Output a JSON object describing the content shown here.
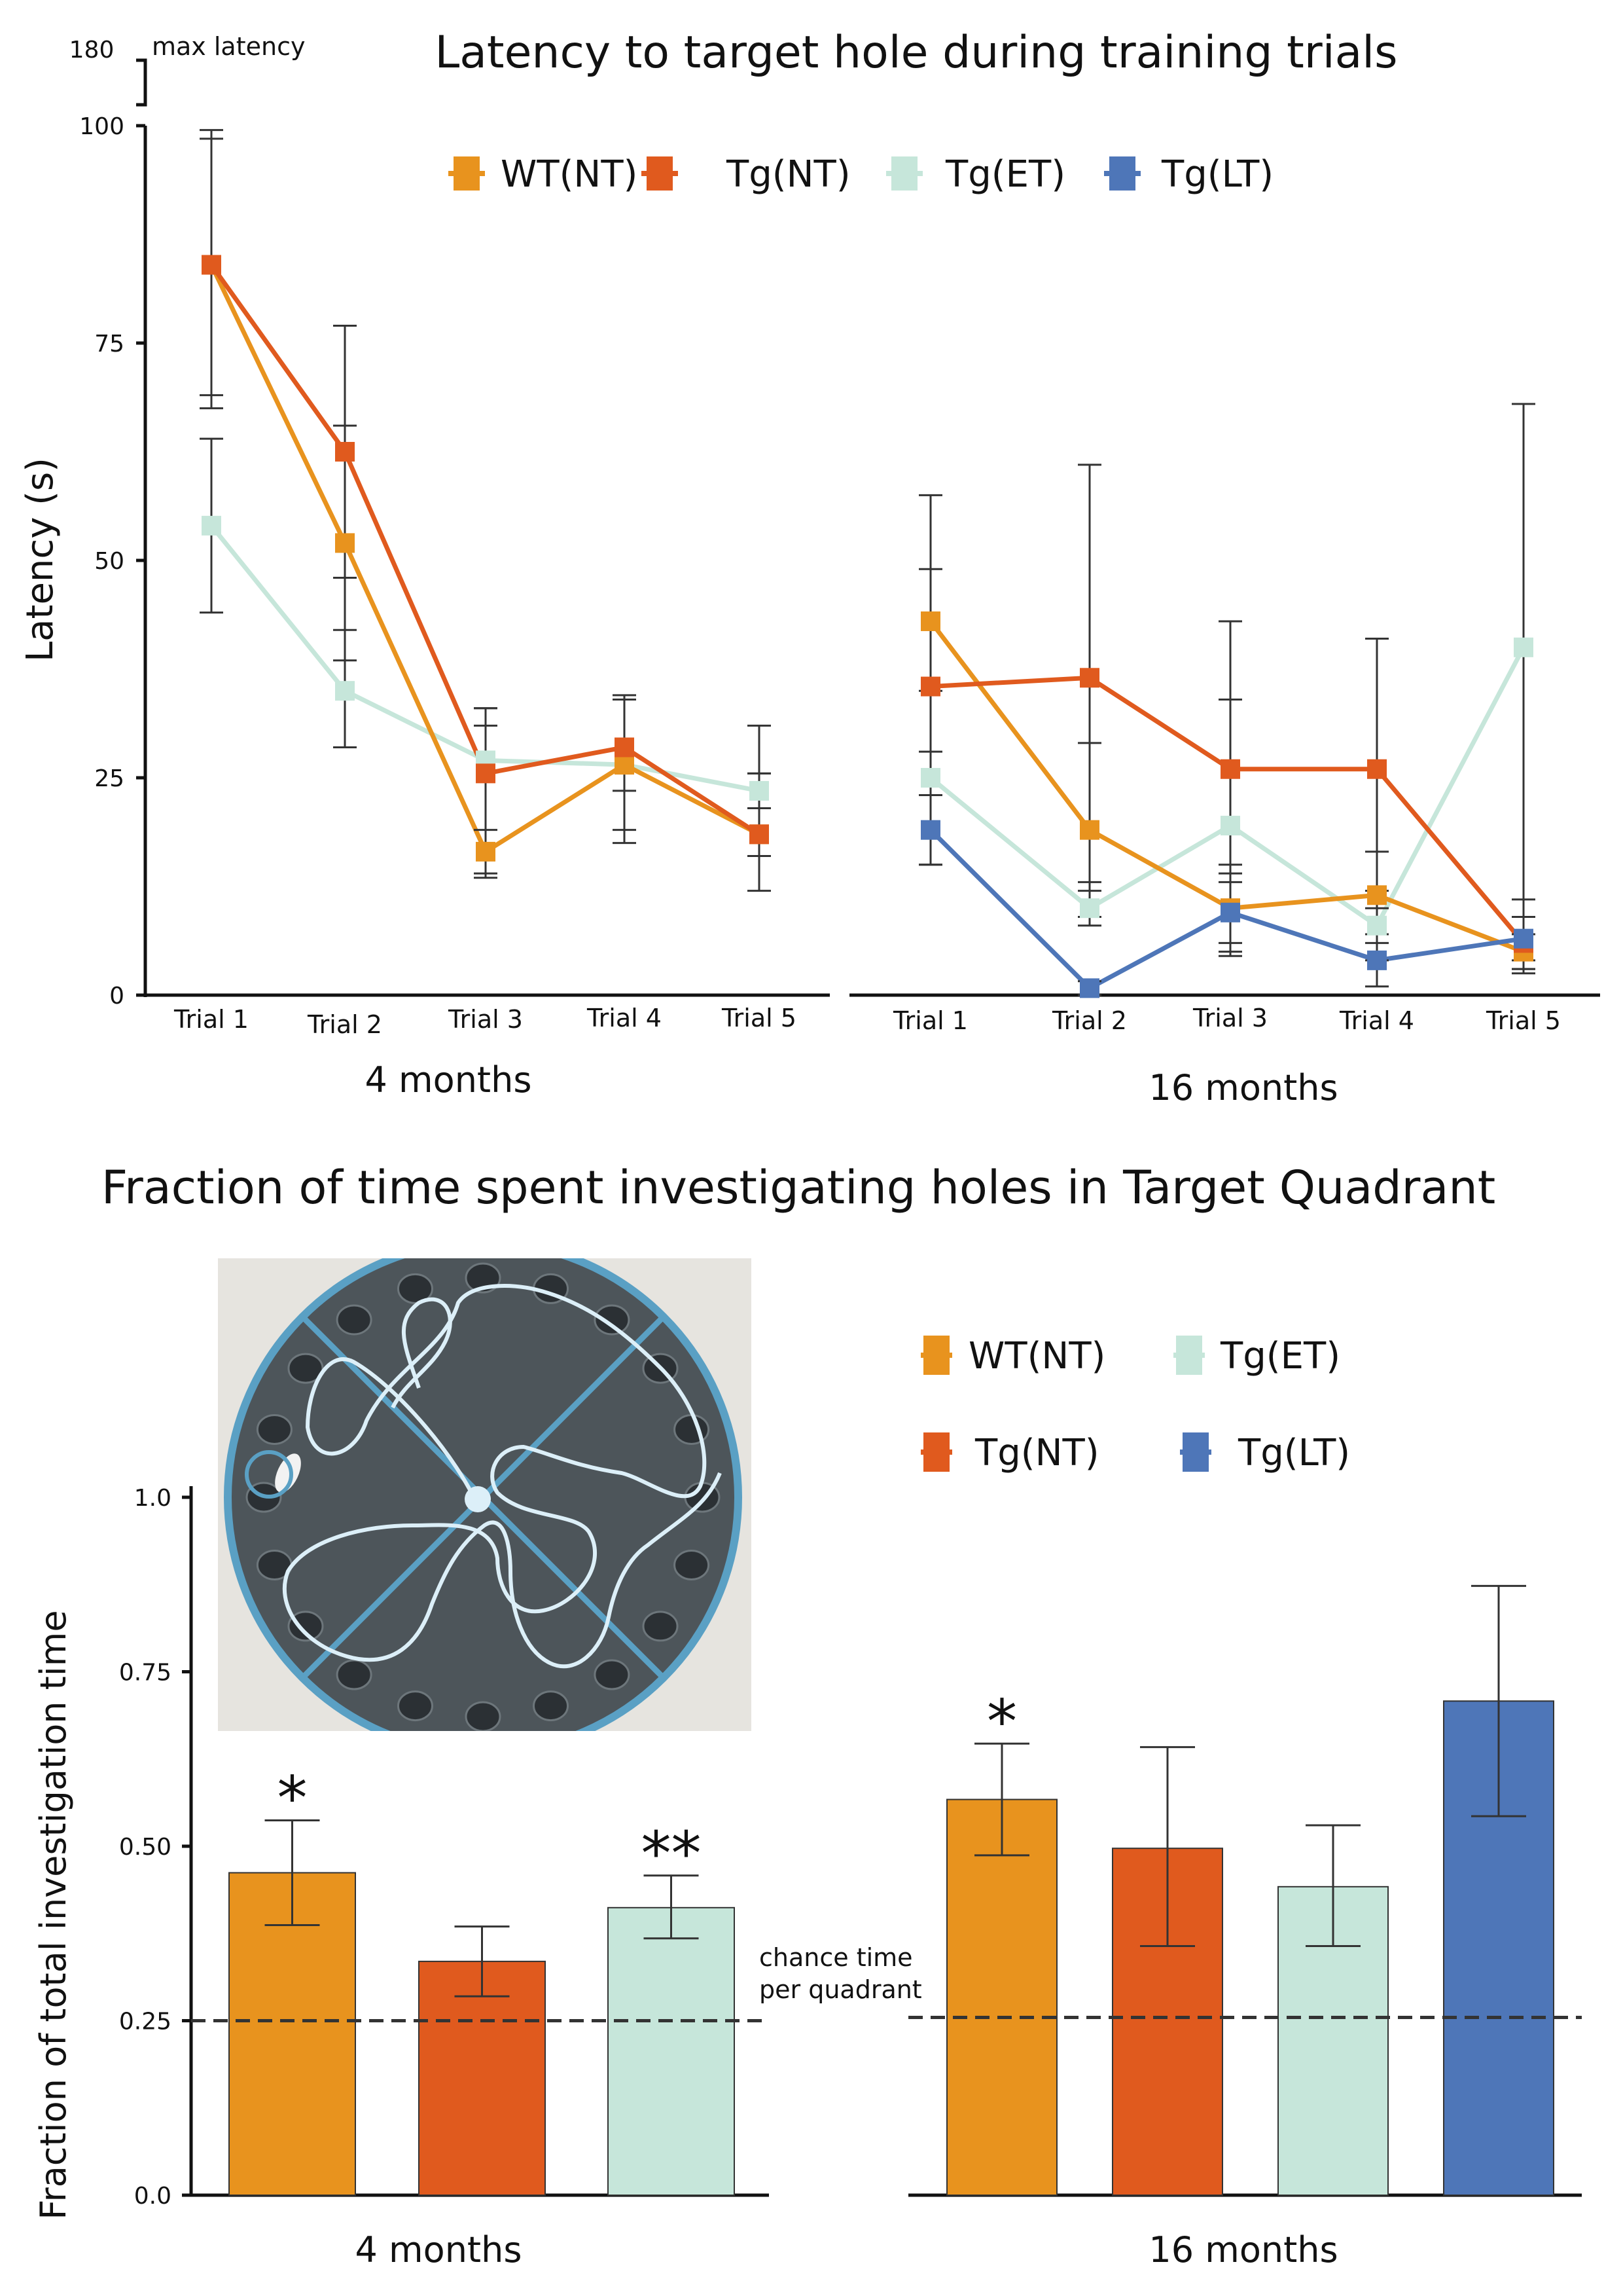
{
  "colors": {
    "wt_nt": "#E8931E",
    "tg_nt": "#E05A1E",
    "tg_et": "#C6E6DA",
    "tg_lt": "#4E76B8",
    "error": "#333333",
    "axis": "#111111",
    "maze_ring": "#5AA0C4",
    "maze_track": "#DCEFF8"
  },
  "legend_top": [
    "WT(NT)",
    "Tg(NT)",
    "Tg(ET)",
    "Tg(LT)"
  ],
  "legend_bottom": [
    "WT(NT)",
    "Tg(ET)",
    "Tg(NT)",
    "Tg(LT)"
  ],
  "chart_data": [
    {
      "type": "line",
      "title": "Latency to target hole during training trials",
      "ylabel": "Latency (s)",
      "ylim": [
        0,
        100
      ],
      "yticks": [
        "0",
        "25",
        "50",
        "75",
        "100"
      ],
      "axis_break": {
        "top_tick": "180",
        "label": "max latency"
      },
      "panels": [
        {
          "xlabel": "4 months",
          "categories": [
            "Trial 1",
            "Trial 2",
            "Trial 3",
            "Trial 4",
            "Trial 5"
          ],
          "series": [
            {
              "name": "WT(NT)",
              "values": [
                84,
                52,
                16.5,
                26.5,
                18.5
              ],
              "err_low": [
                67.5,
                38.5,
                14,
                19,
                16
              ],
              "err_high": [
                99.5,
                65.5,
                31,
                34,
                25.5
              ]
            },
            {
              "name": "Tg(NT)",
              "values": [
                84,
                62.5,
                25.5,
                28.5,
                18.5
              ],
              "err_low": [
                69,
                48,
                13.5,
                17.5,
                12
              ],
              "err_high": [
                98.5,
                77,
                33,
                34.5,
                31
              ]
            },
            {
              "name": "Tg(ET)",
              "values": [
                54,
                35,
                27,
                26.5,
                23.5
              ],
              "err_low": [
                44,
                28.5,
                19,
                23.5,
                21.5
              ],
              "err_high": [
                64,
                42,
                33,
                34,
                25.5
              ]
            }
          ]
        },
        {
          "xlabel": "16 months",
          "categories": [
            "Trial 1",
            "Trial 2",
            "Trial 3",
            "Trial 4",
            "Trial 5"
          ],
          "series": [
            {
              "name": "WT(NT)",
              "values": [
                43,
                19,
                10,
                11.5,
                5
              ],
              "err_low": [
                28,
                9,
                5,
                6,
                3
              ],
              "err_high": [
                57.5,
                29,
                13,
                16.5,
                7
              ]
            },
            {
              "name": "Tg(NT)",
              "values": [
                35.5,
                36.5,
                26,
                26,
                6
              ],
              "err_low": [
                23,
                12,
                14,
                10,
                2.5
              ],
              "err_high": [
                49,
                61,
                43,
                41,
                11
              ]
            },
            {
              "name": "Tg(ET)",
              "values": [
                25,
                10,
                19.5,
                8,
                40
              ],
              "err_low": [
                15,
                8,
                6,
                4,
                3
              ],
              "err_high": [
                35,
                13,
                34,
                12,
                68
              ]
            },
            {
              "name": "Tg(LT)",
              "values": [
                19,
                0.8,
                9.5,
                4,
                6.5
              ],
              "err_low": [
                15,
                0,
                4.5,
                1,
                4
              ],
              "err_high": [
                23,
                1.6,
                15,
                7,
                9
              ]
            }
          ]
        }
      ]
    },
    {
      "type": "bar",
      "title": "Fraction of time spent investigating holes in Target Quadrant",
      "ylabel": "Fraction of total investigation time",
      "ylim": [
        0,
        1.0
      ],
      "yticks": [
        "0.0",
        "0.25",
        "0.50",
        "0.75",
        "1.0"
      ],
      "chance_level": 0.25,
      "chance_label": [
        "chance time",
        "per quadrant"
      ],
      "panels": [
        {
          "xlabel": "4 months",
          "bars": [
            {
              "name": "WT(NT)",
              "value": 0.462,
              "err_low": 0.387,
              "err_high": 0.537,
              "sig": "*"
            },
            {
              "name": "Tg(NT)",
              "value": 0.335,
              "err_low": 0.285,
              "err_high": 0.385,
              "sig": ""
            },
            {
              "name": "Tg(ET)",
              "value": 0.412,
              "err_low": 0.368,
              "err_high": 0.458,
              "sig": "**"
            }
          ]
        },
        {
          "xlabel": "16 months",
          "bars": [
            {
              "name": "WT(NT)",
              "value": 0.567,
              "err_low": 0.487,
              "err_high": 0.647,
              "sig": "*"
            },
            {
              "name": "Tg(NT)",
              "value": 0.497,
              "err_low": 0.357,
              "err_high": 0.642,
              "sig": ""
            },
            {
              "name": "Tg(ET)",
              "value": 0.442,
              "err_low": 0.357,
              "err_high": 0.53,
              "sig": ""
            },
            {
              "name": "Tg(LT)",
              "value": 0.708,
              "err_low": 0.543,
              "err_high": 0.873,
              "sig": ""
            }
          ]
        }
      ]
    }
  ]
}
